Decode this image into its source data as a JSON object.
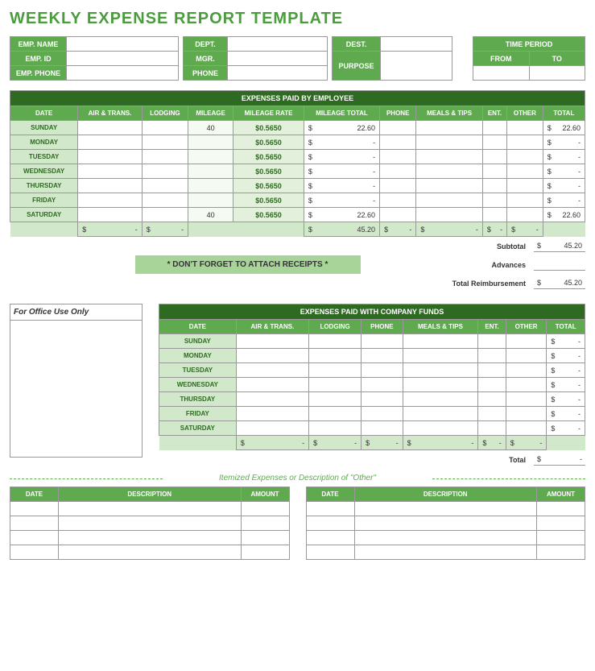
{
  "title": "WEEKLY EXPENSE REPORT TEMPLATE",
  "info": {
    "labels": {
      "emp_name": "EMP. NAME",
      "emp_id": "EMP. ID",
      "emp_phone": "EMP. PHONE",
      "dept": "DEPT.",
      "mgr": "MGR.",
      "phone": "PHONE",
      "dest": "DEST.",
      "purpose": "PURPOSE",
      "time_period": "TIME PERIOD",
      "from": "FROM",
      "to": "TO"
    }
  },
  "employee_expenses": {
    "section_title": "EXPENSES PAID BY EMPLOYEE",
    "columns": [
      "DATE",
      "AIR & TRANS.",
      "LODGING",
      "MILEAGE",
      "MILEAGE RATE",
      "MILEAGE TOTAL",
      "PHONE",
      "MEALS & TIPS",
      "ENT.",
      "OTHER",
      "TOTAL"
    ],
    "days": [
      "SUNDAY",
      "MONDAY",
      "TUESDAY",
      "WEDNESDAY",
      "THURSDAY",
      "FRIDAY",
      "SATURDAY"
    ],
    "rate": "$0.5650",
    "mileage": [
      "40",
      "",
      "",
      "",
      "",
      "",
      "40"
    ],
    "mileage_total": [
      "22.60",
      "-",
      "-",
      "-",
      "-",
      "-",
      "22.60"
    ],
    "row_total": [
      "22.60",
      "-",
      "-",
      "-",
      "-",
      "-",
      "22.60"
    ],
    "col_totals": {
      "air": "-",
      "lodging": "-",
      "mileage_total": "45.20",
      "phone": "-",
      "meals": "-",
      "ent": "-",
      "other": "-"
    },
    "subtotal_label": "Subtotal",
    "subtotal": "45.20",
    "advances_label": "Advances",
    "advances": "",
    "reimbursement_label": "Total Reimbursement",
    "reimbursement": "45.20",
    "receipt_msg": "* DON'T FORGET TO ATTACH RECEIPTS *"
  },
  "company_expenses": {
    "section_title": "EXPENSES PAID WITH COMPANY FUNDS",
    "columns": [
      "DATE",
      "AIR & TRANS.",
      "LODGING",
      "PHONE",
      "MEALS & TIPS",
      "ENT.",
      "OTHER",
      "TOTAL"
    ],
    "days": [
      "SUNDAY",
      "MONDAY",
      "TUESDAY",
      "WEDNESDAY",
      "THURSDAY",
      "FRIDAY",
      "SATURDAY"
    ],
    "total_label": "Total",
    "total": "-"
  },
  "office_use": "For Office Use Only",
  "itemized": {
    "title": "Itemized Expenses or Description of \"Other\"",
    "columns": [
      "DATE",
      "DESCRIPTION",
      "AMOUNT"
    ]
  },
  "colors": {
    "brand_green": "#4a9c3c",
    "dark_green": "#2e6a21",
    "mid_green": "#5faa4f",
    "light_green": "#d2e8ca",
    "pale_green": "#e3f0dc",
    "banner_green": "#a8d49a"
  }
}
